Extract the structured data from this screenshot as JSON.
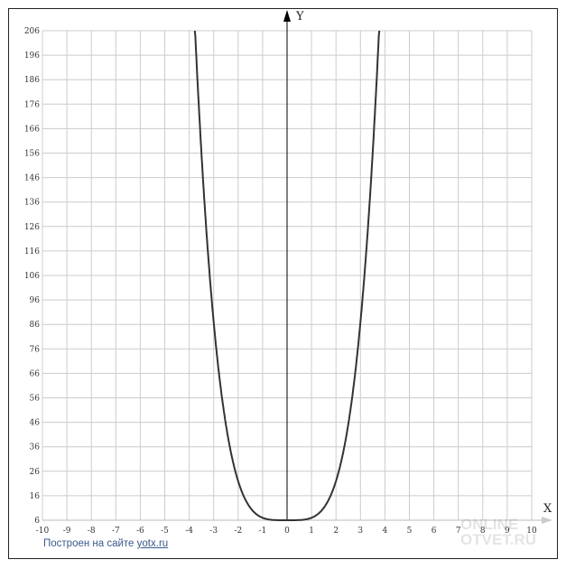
{
  "chart_data": {
    "type": "line",
    "function": "y = x^4 + 6",
    "xlabel": "X",
    "ylabel": "Y",
    "xlim": [
      -10,
      10
    ],
    "ylim": [
      6,
      206
    ],
    "grid": true,
    "x_ticks": [
      "-10",
      "-9",
      "-8",
      "-7",
      "-6",
      "-5",
      "-4",
      "-3",
      "-2",
      "-1",
      "0",
      "1",
      "2",
      "3",
      "4",
      "5",
      "6",
      "7",
      "8",
      "9",
      "10"
    ],
    "y_ticks": [
      "6",
      "16",
      "26",
      "36",
      "46",
      "56",
      "66",
      "76",
      "86",
      "96",
      "106",
      "116",
      "126",
      "136",
      "146",
      "156",
      "166",
      "176",
      "186",
      "196",
      "206"
    ],
    "series": [
      {
        "x": [
          -3.77,
          -3.5,
          -3,
          -2.5,
          -2,
          -1.5,
          -1,
          -0.5,
          0,
          0.5,
          1,
          1.5,
          2,
          2.5,
          3,
          3.5,
          3.77
        ],
        "y": [
          208,
          156.1,
          87,
          45.1,
          22,
          11.1,
          7,
          6.06,
          6,
          6.06,
          7,
          11.1,
          22,
          45.1,
          87,
          156.1,
          208
        ]
      }
    ],
    "colors": {
      "curve": "#333333",
      "grid": "#cccccc",
      "axis": "#000000"
    }
  },
  "footer": {
    "text": "Построен на сайте ",
    "link": "yotx.ru"
  },
  "watermark": {
    "line1": "ONLINE",
    "line2": "OTVET.RU"
  }
}
